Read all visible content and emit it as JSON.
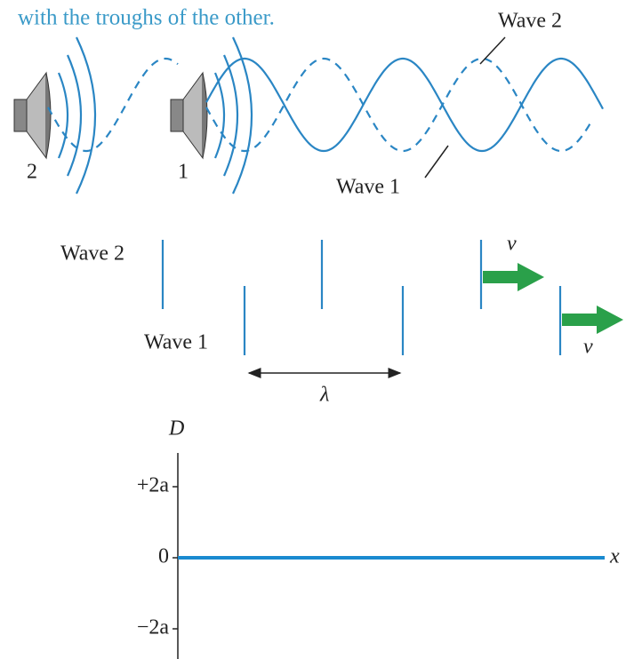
{
  "caption": "with the troughs of the other.",
  "top": {
    "wave2_label": "Wave 2",
    "wave1_label": "Wave 1",
    "speaker2_label": "2",
    "speaker1_label": "1"
  },
  "fronts": {
    "wave2_label": "Wave 2",
    "wave1_label": "Wave 1",
    "speed2_label": "v",
    "speed1_label": "v",
    "wavelength_label": "λ"
  },
  "graph": {
    "y_label": "D",
    "x_label": "x",
    "tick_top": "+2a",
    "tick_mid": "0",
    "tick_bottom": "−2a"
  }
}
